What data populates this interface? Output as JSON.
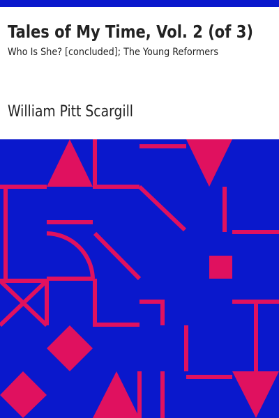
{
  "cover": {
    "title": "Tales of My Time, Vol. 2 (of 3)",
    "subtitle": "Who Is She? [concluded]; The Young Reformers",
    "author": "William Pitt Scargill"
  }
}
